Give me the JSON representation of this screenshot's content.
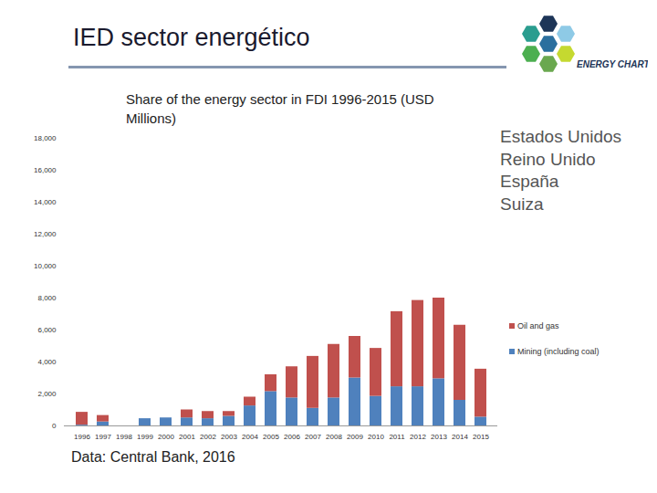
{
  "header": {
    "title": "IED sector energético",
    "logo": "ENERGY CHARTER"
  },
  "chart_data": {
    "type": "bar",
    "title": "Share of the energy sector in FDI 1996-2015 (USD Millions)",
    "annotations": [
      "Estados Unidos",
      "Reino Unido",
      "España",
      "Suiza"
    ],
    "source": "Data: Central Bank, 2016",
    "categories": [
      "1996",
      "1997",
      "1998",
      "1999",
      "2000",
      "2001",
      "2002",
      "2003",
      "2004",
      "2005",
      "2006",
      "2007",
      "2008",
      "2009",
      "2010",
      "2011",
      "2012",
      "2013",
      "2014",
      "2015"
    ],
    "series": [
      {
        "name": "Mining (including coal)",
        "color": "#4f81bd",
        "values": [
          50,
          250,
          0,
          450,
          500,
          500,
          450,
          600,
          1250,
          2150,
          1750,
          1100,
          1750,
          3000,
          1850,
          2450,
          2450,
          2950,
          1600,
          550
        ]
      },
      {
        "name": "Oil and gas",
        "color": "#c0504d",
        "values": [
          800,
          400,
          0,
          0,
          0,
          500,
          450,
          300,
          550,
          1050,
          1950,
          3250,
          3350,
          2600,
          3000,
          4700,
          5400,
          5050,
          4700,
          3000
        ]
      }
    ],
    "stacked": true,
    "ylim": [
      0,
      18000
    ],
    "yticks": [
      0,
      {
        "value": 2000,
        "label": "2,000"
      },
      {
        "value": 4000,
        "label": "4,000"
      },
      {
        "value": 6000,
        "label": "6,000"
      },
      {
        "value": 8000,
        "label": "8,000"
      },
      {
        "value": 10000,
        "label": "10,000"
      },
      {
        "value": 12000,
        "label": "12,000"
      },
      {
        "value": 14000,
        "label": "14,000"
      },
      {
        "value": 16000,
        "label": "16,000"
      },
      {
        "value": 18000,
        "label": "18,000"
      }
    ],
    "grid": false,
    "legend": "right"
  }
}
